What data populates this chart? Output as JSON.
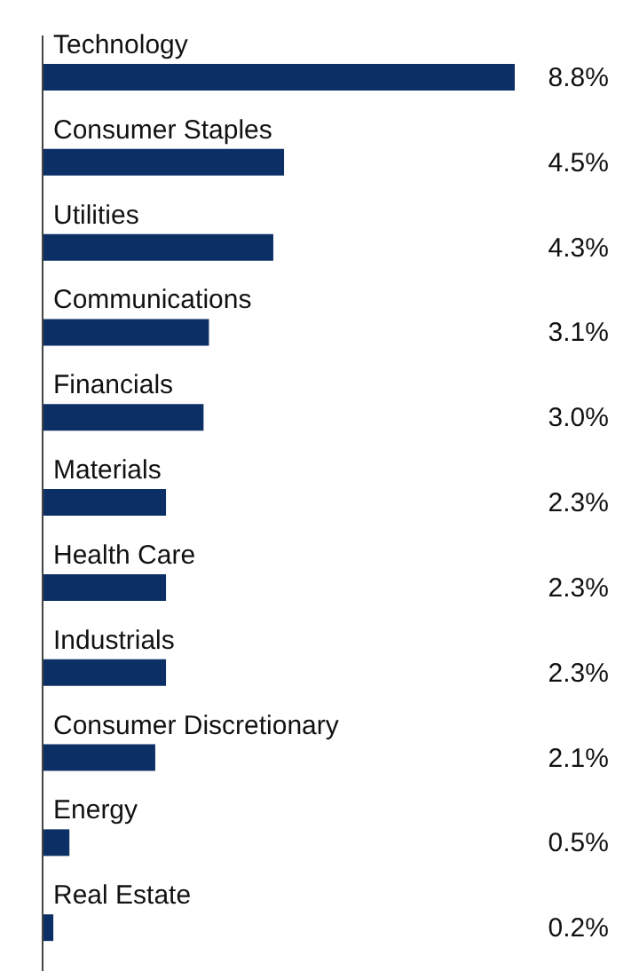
{
  "chart_data": {
    "type": "bar",
    "orientation": "horizontal",
    "categories": [
      "Technology",
      "Consumer Staples",
      "Utilities",
      "Communications",
      "Financials",
      "Materials",
      "Health Care",
      "Industrials",
      "Consumer Discretionary",
      "Energy",
      "Real Estate"
    ],
    "values": [
      8.8,
      4.5,
      4.3,
      3.1,
      3.0,
      2.3,
      2.3,
      2.3,
      2.1,
      0.5,
      0.2
    ],
    "value_labels": [
      "8.8%",
      "4.5%",
      "4.3%",
      "3.1%",
      "3.0%",
      "2.3%",
      "2.3%",
      "2.3%",
      "2.1%",
      "0.5%",
      "0.2%"
    ],
    "color": "#0c2f66",
    "grid": false,
    "legend": false
  }
}
